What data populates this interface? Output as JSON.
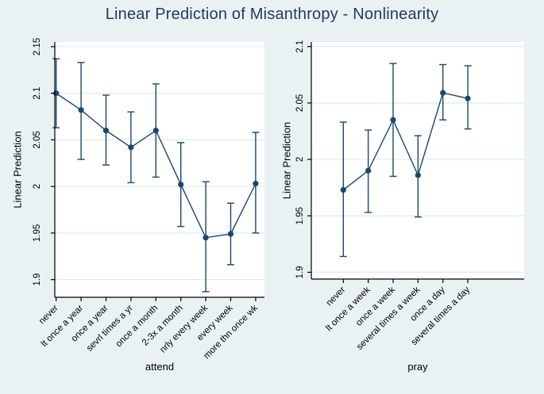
{
  "title": "Linear Prediction of Misanthropy - Nonlinearity",
  "colors": {
    "background": "#eaf1f3",
    "plot_background": "#ffffff",
    "series": "#1a476f",
    "grid": "#e2edf3",
    "axis": "#000000",
    "title_text": "#233a62"
  },
  "chart_data": [
    {
      "type": "line",
      "name": "attend-panel",
      "xlabel": "attend",
      "ylabel": "Linear Prediction",
      "categories": [
        "never",
        "lt once a year",
        "once a year",
        "sevrl times a yr",
        "once a month",
        "2-3x a month",
        "nrly every week",
        "every week",
        "more thn once wk"
      ],
      "values": [
        2.1,
        2.082,
        2.06,
        2.042,
        2.06,
        2.002,
        1.945,
        1.949,
        2.003
      ],
      "ci_high": [
        2.137,
        2.133,
        2.098,
        2.08,
        2.11,
        2.047,
        2.005,
        1.982,
        2.058
      ],
      "ci_low": [
        2.063,
        2.029,
        2.023,
        2.004,
        2.01,
        1.957,
        1.887,
        1.916,
        1.95
      ],
      "yticks": [
        1.9,
        1.95,
        2.0,
        2.05,
        2.1,
        2.15
      ],
      "ytick_labels": [
        "1.9",
        "1.95",
        "2",
        "2.05",
        "2.1",
        "2.15"
      ],
      "ylim": [
        1.881,
        2.155
      ],
      "grid": true,
      "legend": "none",
      "marker": "circle",
      "error_bars": true
    },
    {
      "type": "line",
      "name": "pray-panel",
      "xlabel": "pray",
      "ylabel": "Linear Prediction",
      "categories": [
        "never",
        "lt once a week",
        "once a week",
        "several times a week",
        "once a day",
        "several times a day"
      ],
      "values": [
        1.973,
        1.99,
        2.035,
        1.986,
        2.059,
        2.054
      ],
      "ci_high": [
        2.033,
        2.026,
        2.085,
        2.021,
        2.084,
        2.083
      ],
      "ci_low": [
        1.914,
        1.953,
        1.985,
        1.949,
        2.035,
        2.027
      ],
      "yticks": [
        1.9,
        1.95,
        2.0,
        2.05,
        2.1
      ],
      "ytick_labels": [
        "1.9",
        "1.95",
        "2",
        "2.05",
        "2.1"
      ],
      "ylim": [
        1.894,
        2.104
      ],
      "grid": true,
      "legend": "none",
      "marker": "circle",
      "error_bars": true
    }
  ]
}
